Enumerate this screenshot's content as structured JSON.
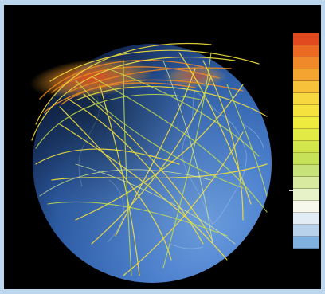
{
  "image": {
    "subject": "globe-with-network-traffic-arcs",
    "background_color": "#000000",
    "frame_color": "#bcd6ee"
  },
  "legend": {
    "header_line1": "",
    "header_line2": "",
    "swatches": [
      {
        "color": "#e04a1e",
        "label": ""
      },
      {
        "color": "#ea6a22",
        "label": ""
      },
      {
        "color": "#f0892a",
        "label": ""
      },
      {
        "color": "#f4a531",
        "label": ""
      },
      {
        "color": "#f7c13a",
        "label": ""
      },
      {
        "color": "#f7d840",
        "label": ""
      },
      {
        "color": "#f5e23f",
        "label": ""
      },
      {
        "color": "#eeea3e",
        "label": ""
      },
      {
        "color": "#e2ea45",
        "label": ""
      },
      {
        "color": "#d3e64c",
        "label": ""
      },
      {
        "color": "#c7e159",
        "label": ""
      },
      {
        "color": "#c8e27a",
        "label": ""
      },
      {
        "color": "#d7eaa0",
        "label": ""
      },
      {
        "color": "#e8f2c8",
        "label": ""
      },
      {
        "color": "#f6f8ee",
        "label": ""
      },
      {
        "color": "#e2ecf5",
        "label": ""
      },
      {
        "color": "#b9d2ec",
        "label": ""
      },
      {
        "color": "#7fb0e0",
        "label": ""
      }
    ]
  }
}
